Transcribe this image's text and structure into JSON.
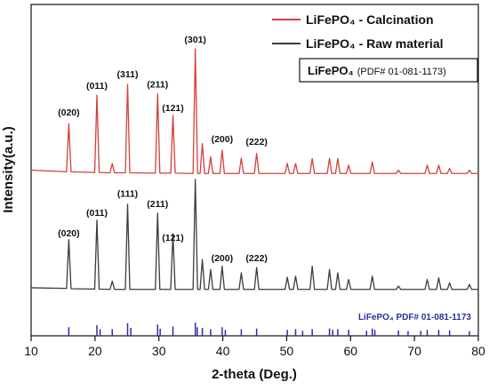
{
  "chart_data": {
    "type": "line",
    "xlabel": "2-theta (Deg.)",
    "ylabel": "Intensity(a.u.)",
    "xlim": [
      10,
      80
    ],
    "xticks": [
      10,
      20,
      30,
      40,
      50,
      60,
      70,
      80
    ],
    "ylim": [
      0,
      100
    ],
    "x": [
      10,
      15.55,
      15.9,
      16.25,
      19.95,
      20.3,
      20.65,
      22.35,
      22.7,
      23.05,
      24.75,
      25.1,
      25.45,
      29.45,
      29.8,
      30.15,
      31.85,
      32.2,
      32.55,
      35.35,
      35.7,
      36.05,
      36.45,
      36.8,
      37.15,
      37.75,
      38.1,
      38.45,
      39.55,
      39.9,
      40.25,
      42.55,
      42.9,
      43.25,
      44.95,
      45.3,
      45.65,
      49.75,
      50.1,
      50.45,
      51.05,
      51.4,
      51.75,
      53.65,
      54.0,
      54.35,
      56.35,
      56.7,
      57.05,
      57.65,
      58.0,
      58.35,
      59.35,
      59.7,
      60.05,
      63.05,
      63.4,
      63.75,
      67.15,
      67.5,
      67.85,
      71.65,
      72.0,
      72.35,
      73.45,
      73.8,
      74.15,
      75.15,
      75.5,
      75.85,
      78.25,
      78.6,
      78.95,
      80
    ],
    "series": [
      {
        "name": "LiFePO₄ - Calcination",
        "color": "#d2413a",
        "values": [
          50,
          49.5,
          64,
          49.5,
          49.3,
          72.6,
          49.3,
          49.2,
          52,
          49.2,
          49.2,
          75.9,
          49.2,
          49.1,
          73,
          49.1,
          49.1,
          66.5,
          49.1,
          49,
          86.6,
          49,
          49,
          58,
          49,
          49,
          54,
          49,
          49,
          56,
          49,
          49,
          53.6,
          49,
          49,
          55,
          49,
          49,
          52,
          49,
          49,
          52,
          49,
          49,
          53.5,
          49,
          49,
          53.5,
          49,
          49,
          53.5,
          49,
          49,
          51.5,
          49,
          49,
          52.5,
          49,
          49,
          50,
          49,
          49,
          51.5,
          49,
          49,
          51.5,
          49,
          49,
          50.5,
          49,
          49,
          50,
          49,
          49
        ]
      },
      {
        "name": "LiFePO₄ - Raw material",
        "color": "#3c3c3c",
        "values": [
          14.5,
          14.3,
          29,
          14.2,
          14.1,
          34.9,
          14.1,
          14,
          16.5,
          14,
          14,
          39.7,
          14,
          14,
          37,
          14,
          14,
          30.8,
          14,
          14,
          47.2,
          14,
          14,
          23,
          14,
          14,
          20,
          14,
          14,
          21,
          14,
          14,
          19,
          14,
          14,
          20.6,
          14,
          14,
          17.7,
          14,
          14,
          18,
          14,
          14,
          21,
          14,
          14,
          20,
          14,
          14,
          19,
          14,
          14,
          17,
          14,
          14,
          18,
          14,
          14,
          15,
          14,
          14,
          17,
          14,
          14,
          17.5,
          14,
          14,
          16,
          14,
          14,
          15.5,
          14,
          14
        ]
      }
    ],
    "reference": {
      "name": "LiFePO₄ PDF# 01-081-1173",
      "color": "#2b2f9e",
      "x": [
        15.9,
        20.3,
        20.8,
        22.7,
        25.1,
        25.6,
        29.8,
        30.2,
        32.2,
        35.7,
        36.0,
        36.8,
        38.1,
        39.9,
        40.4,
        42.9,
        45.3,
        50.1,
        51.4,
        52.5,
        54.0,
        56.7,
        57.2,
        58.0,
        59.7,
        62.5,
        63.4,
        63.8,
        67.5,
        69.0,
        71.0,
        72.0,
        73.8,
        75.5,
        78.6
      ],
      "values": [
        2.6,
        3.2,
        2,
        2,
        3.8,
        2.4,
        3.4,
        2.2,
        2.8,
        4,
        2.6,
        2.4,
        2,
        2.6,
        1.8,
        2,
        2.2,
        1.8,
        2,
        1.5,
        2,
        2.2,
        1.8,
        2,
        1.8,
        1.5,
        2.2,
        1.8,
        1.6,
        1.4,
        1.5,
        1.8,
        1.8,
        1.6,
        1.4
      ]
    },
    "legend_note": [
      "LiFePO₄",
      "(PDF# 01-081-1173)"
    ],
    "annotations": [
      {
        "text": "(020)",
        "x": 15.9,
        "y": 66.5
      },
      {
        "text": "(011)",
        "x": 20.3,
        "y": 74.5
      },
      {
        "text": "(311)",
        "x": 25.1,
        "y": 78
      },
      {
        "text": "(211)",
        "x": 29.8,
        "y": 75
      },
      {
        "text": "(121)",
        "x": 32.2,
        "y": 67.8
      },
      {
        "text": "(301)",
        "x": 35.7,
        "y": 88.5
      },
      {
        "text": "(200)",
        "x": 39.9,
        "y": 58.4
      },
      {
        "text": "(222)",
        "x": 45.3,
        "y": 57.6
      },
      {
        "text": "(020)",
        "x": 15.9,
        "y": 30
      },
      {
        "text": "(011)",
        "x": 20.3,
        "y": 36.2
      },
      {
        "text": "(111)",
        "x": 25.1,
        "y": 42
      },
      {
        "text": "(211)",
        "x": 29.8,
        "y": 38.9
      },
      {
        "text": "(121)",
        "x": 32.2,
        "y": 28.7
      },
      {
        "text": "(200)",
        "x": 39.9,
        "y": 22.5
      },
      {
        "text": "(222)",
        "x": 45.3,
        "y": 22.5
      }
    ]
  }
}
